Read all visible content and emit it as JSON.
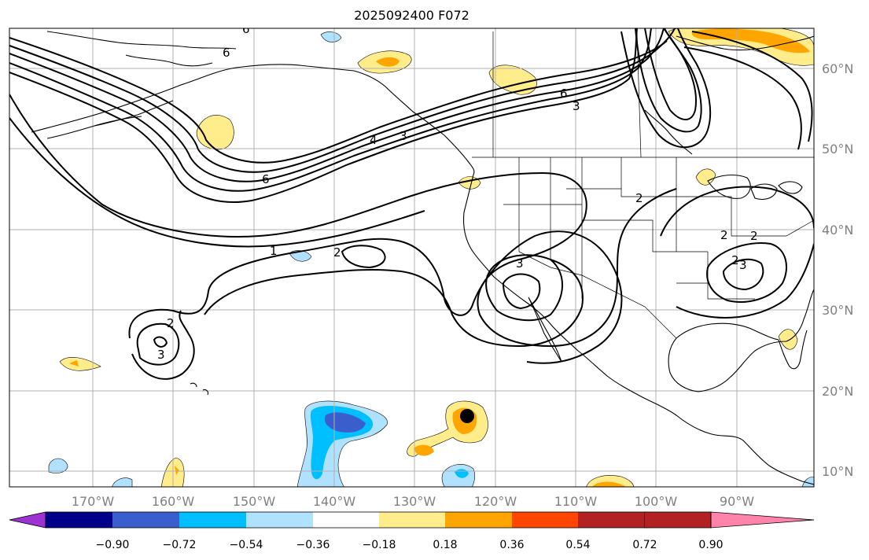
{
  "title": "2025092400 F072",
  "map": {
    "lat_labels": [
      "60°N",
      "50°N",
      "40°N",
      "30°N",
      "20°N",
      "10°N"
    ],
    "lon_labels": [
      "170°W",
      "160°W",
      "150°W",
      "140°W",
      "130°W",
      "120°W",
      "110°W",
      "100°W",
      "90°W"
    ],
    "contour_labels": [
      "6",
      "6",
      "4",
      "3",
      "6",
      "6",
      "1",
      "2",
      "2",
      "3",
      "3",
      "2",
      "3",
      "2",
      "2",
      "2",
      "3"
    ]
  },
  "colorbar": {
    "ticks": [
      "−0.90",
      "−0.72",
      "−0.54",
      "−0.36",
      "−0.18",
      "0.18",
      "0.36",
      "0.54",
      "0.72",
      "0.90"
    ],
    "colors": [
      "#9b32d2",
      "#00008b",
      "#3a5fcd",
      "#00bfff",
      "#b0e2ff",
      "#ffffff",
      "#ffec8b",
      "#ffa500",
      "#ff4500",
      "#b22222",
      "#ff83aa"
    ]
  }
}
